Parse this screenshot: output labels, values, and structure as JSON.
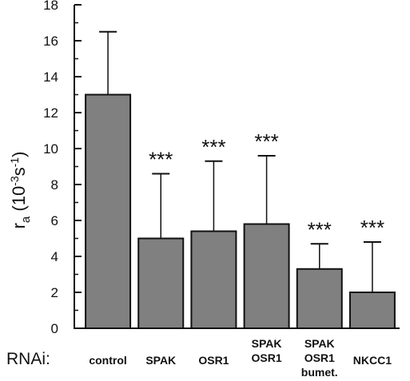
{
  "chart_data": {
    "type": "bar",
    "row_label": "RNAi:",
    "ylabel": {
      "main": "r",
      "subscript": "a",
      "unit_open": " (10",
      "exp1": "-3",
      "unit_mid": "s",
      "exp2": "-1",
      "unit_close": ")"
    },
    "ylim": [
      0,
      18
    ],
    "yticks": [
      "0",
      "2",
      "4",
      "6",
      "8",
      "10",
      "12",
      "14",
      "16",
      "18"
    ],
    "bar_color": "#808080",
    "categories": [
      {
        "lines": [
          "control"
        ],
        "value": 13.0,
        "error": 3.5,
        "significance": ""
      },
      {
        "lines": [
          "SPAK"
        ],
        "value": 5.0,
        "error": 3.6,
        "significance": "***"
      },
      {
        "lines": [
          "OSR1"
        ],
        "value": 5.4,
        "error": 3.9,
        "significance": "***"
      },
      {
        "lines": [
          "SPAK",
          "OSR1"
        ],
        "value": 5.8,
        "error": 3.8,
        "significance": "***"
      },
      {
        "lines": [
          "SPAK",
          "OSR1",
          "bumet."
        ],
        "value": 3.3,
        "error": 1.4,
        "significance": "***"
      },
      {
        "lines": [
          "NKCC1"
        ],
        "value": 2.0,
        "error": 2.8,
        "significance": "***"
      }
    ]
  }
}
